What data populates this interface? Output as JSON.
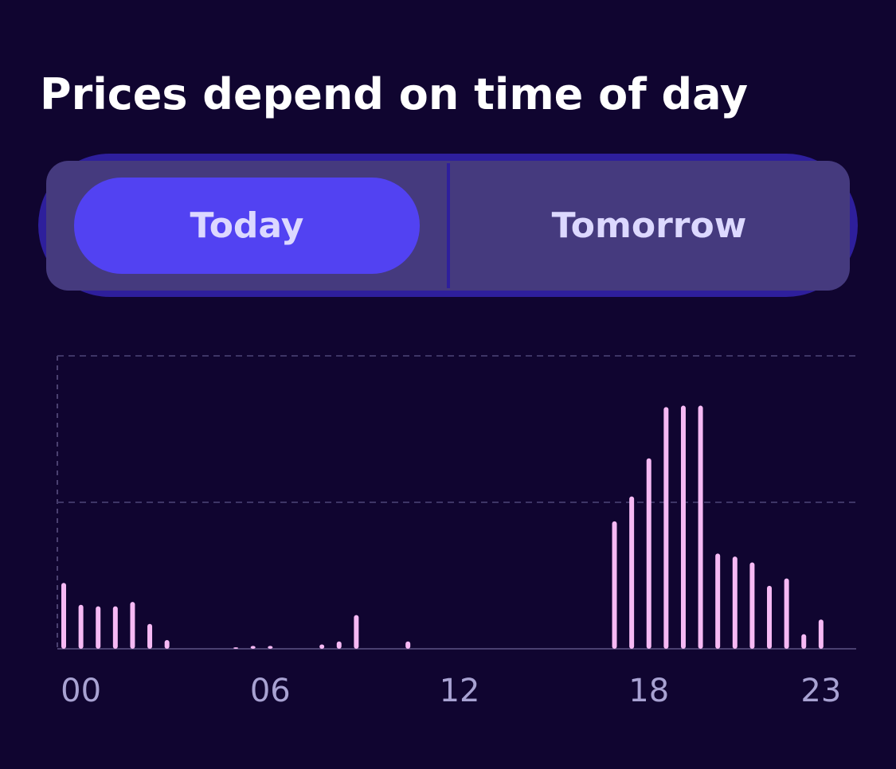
{
  "header": {
    "title": "Prices depend on time of day"
  },
  "tabs": [
    "Today",
    "Tomorrow"
  ],
  "chart_data": {
    "type": "bar",
    "categories": [
      null,
      "00",
      null,
      null,
      null,
      null,
      null,
      null,
      null,
      null,
      null,
      null,
      "06",
      null,
      null,
      null,
      null,
      null,
      null,
      null,
      null,
      null,
      null,
      "12",
      null,
      null,
      null,
      null,
      null,
      null,
      null,
      null,
      null,
      null,
      "18",
      null,
      null,
      null,
      null,
      null,
      null,
      null,
      null,
      null,
      "23"
    ],
    "values": [
      0.45,
      0.3,
      0.29,
      0.29,
      0.32,
      0.17,
      0.06,
      0,
      0,
      0,
      0.01,
      0.02,
      0.02,
      0,
      0,
      0.03,
      0.05,
      0.23,
      0,
      0,
      0.05,
      0,
      0,
      0,
      0,
      0,
      0,
      0,
      0,
      0,
      0,
      0,
      0.87,
      1.04,
      1.3,
      1.65,
      1.66,
      1.66,
      0.65,
      0.63,
      0.59,
      0.43,
      0.48,
      0.1,
      0.2
    ],
    "color": "#f6b9f4",
    "ylim": [
      0,
      2
    ],
    "yticks": [
      0,
      1,
      2
    ],
    "grid": true
  }
}
